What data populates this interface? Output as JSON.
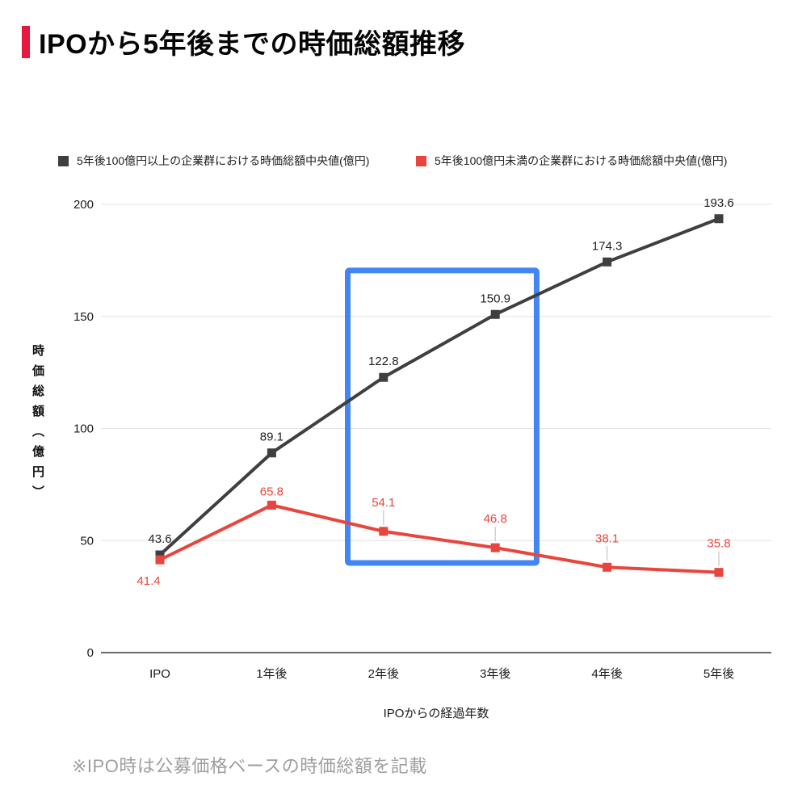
{
  "title": "IPOから5年後までの時価総額推移",
  "accent_color": "#E8173D",
  "footnote": "※IPO時は公募価格ベースの時価総額を記載",
  "chart_data": {
    "type": "line",
    "categories": [
      "IPO",
      "1年後",
      "2年後",
      "3年後",
      "4年後",
      "5年後"
    ],
    "series": [
      {
        "name": "5年後100億円以上の企業群における時価総額中央値(億円)",
        "color": "#3F3F3F",
        "label_color": "#1F1F1F",
        "marker": "square",
        "values": [
          43.6,
          89.1,
          122.8,
          150.9,
          174.3,
          193.6
        ]
      },
      {
        "name": "5年後100億円未満の企業群における時価総額中央値(億円)",
        "color": "#E8453C",
        "label_color": "#E8453C",
        "marker": "square",
        "values": [
          41.4,
          65.8,
          54.1,
          46.8,
          38.1,
          35.8
        ]
      }
    ],
    "xlabel": "IPOからの経過年数",
    "ylabel": "時価総額（億円）",
    "ylim": [
      0,
      200
    ],
    "y_ticks": [
      0,
      50,
      100,
      150,
      200
    ],
    "grid": "horizontal",
    "gridline_color": "#e3e3e3",
    "axis_line_color": "#6b6b6b",
    "legend_position": "top",
    "annotation": {
      "type": "highlight-box",
      "color": "#4285F4",
      "x_index_start": 1.68,
      "x_index_end": 3.37,
      "y_top_value": 170.5,
      "y_bottom_value": 40
    }
  }
}
